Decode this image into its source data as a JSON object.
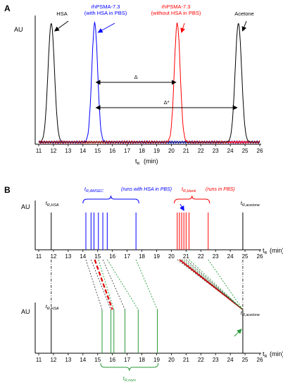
{
  "figure": {
    "panel_a_letter": "A",
    "panel_b_letter": "B"
  },
  "chart_data": [
    {
      "type": "line",
      "panel": "A",
      "ylabel": "AU",
      "xlabel_main": "t",
      "xlabel_sub": "R",
      "xlabel_unit": "(min)",
      "xlim": [
        11,
        26
      ],
      "xticks": [
        11,
        12,
        13,
        14,
        15,
        16,
        17,
        18,
        19,
        20,
        21,
        22,
        23,
        24,
        25,
        26
      ],
      "peaks": [
        {
          "name": "HSA",
          "label_lines": [
            "HSA"
          ],
          "center": 11.85,
          "width": 0.22,
          "height": 0.98,
          "color": "#000000"
        },
        {
          "name": "rhPSMA-7.3 (with HSA in PBS)",
          "label_lines": [
            "rhPSMA-7.3",
            "(with HSA in PBS)"
          ],
          "center": 14.8,
          "width": 0.2,
          "height": 0.98,
          "color": "#0000ff"
        },
        {
          "name": "rhPSMA-7.3 (without HSA in PBS)",
          "label_lines": [
            "rhPSMA-7.3",
            "(without HSA in PBS)"
          ],
          "center": 20.4,
          "width": 0.2,
          "height": 0.98,
          "color": "#ff0000"
        },
        {
          "name": "Acetone",
          "label_lines": [
            "Acetone"
          ],
          "center": 24.55,
          "width": 0.22,
          "height": 0.98,
          "color": "#000000"
        }
      ],
      "arrows": [
        {
          "label": "Δ",
          "from": 14.8,
          "to": 20.4
        },
        {
          "label": "Δ*",
          "from": 14.8,
          "to": 24.55
        }
      ]
    },
    {
      "type": "scatter",
      "panel": "B",
      "ylabel_top": "AU",
      "ylabel_bottom": "AU",
      "xlabel_main": "t",
      "xlabel_sub": "R",
      "xlabel_unit": "(min)",
      "xlim": [
        11,
        26
      ],
      "xticks": [
        11,
        12,
        13,
        14,
        15,
        16,
        17,
        18,
        19,
        20,
        21,
        22,
        23,
        24,
        25,
        26
      ],
      "labels": {
        "hsa_top_main": "t",
        "hsa_top_sub": "R,HSA",
        "hsa_bottom_main": "t",
        "hsa_bottom_sub": "R,HSA",
        "acetone_top_main": "t",
        "acetone_top_sub": "R,acetone",
        "acetone_bottom_main": "t",
        "acetone_bottom_sub": "R,acetone",
        "amsec_main": "t",
        "amsec_sub": "R,AMSEC",
        "amsec_text": "(runs with HSA in PBS)",
        "blank_main": "t",
        "blank_sub": "R,blank",
        "blank_text": "(runs in PBS)",
        "nom_main": "t",
        "nom_sub": "R,nom"
      },
      "hsa_rt": 11.85,
      "acetone_rt": 24.85,
      "top_blue_runs": [
        14.2,
        14.55,
        14.75,
        15.05,
        15.35,
        15.65,
        17.6
      ],
      "top_red_runs": [
        20.4,
        20.55,
        20.7,
        20.85,
        21.0,
        21.2,
        22.5
      ],
      "bottom_green_runs": [
        15.3,
        15.9,
        16.1,
        16.85,
        17.75,
        19.05
      ],
      "highlighted_bottom": 16.0,
      "connections": [
        {
          "from": 14.2,
          "to": 15.3,
          "color": "#444444",
          "style": "dotted"
        },
        {
          "from": 14.55,
          "to": 15.9,
          "color": "#444444",
          "style": "dotted"
        },
        {
          "from": 14.8,
          "to": 16.0,
          "color": "#e00000",
          "style": "dashed-bold"
        },
        {
          "from": 15.05,
          "to": 16.1,
          "color": "#2a9a3a",
          "style": "dotted"
        },
        {
          "from": 15.35,
          "to": 16.85,
          "color": "#444444",
          "style": "dotted"
        },
        {
          "from": 15.65,
          "to": 17.75,
          "color": "#2a9a3a",
          "style": "dotted"
        },
        {
          "from": 17.6,
          "to": 19.05,
          "color": "#2a9a3a",
          "style": "dotted"
        },
        {
          "from": 20.4,
          "to": 24.85,
          "color": "#444444",
          "style": "dotted"
        },
        {
          "from": 20.55,
          "to": 24.85,
          "color": "#cc0000",
          "style": "solid-bold"
        },
        {
          "from": 20.7,
          "to": 24.85,
          "color": "#444444",
          "style": "dotted"
        },
        {
          "from": 20.85,
          "to": 24.85,
          "color": "#2a9a3a",
          "style": "dotted"
        },
        {
          "from": 21.0,
          "to": 24.85,
          "color": "#444444",
          "style": "dotted"
        },
        {
          "from": 21.2,
          "to": 24.85,
          "color": "#2a9a3a",
          "style": "dotted"
        },
        {
          "from": 22.5,
          "to": 24.85,
          "color": "#2a9a3a",
          "style": "dotted"
        }
      ]
    }
  ]
}
